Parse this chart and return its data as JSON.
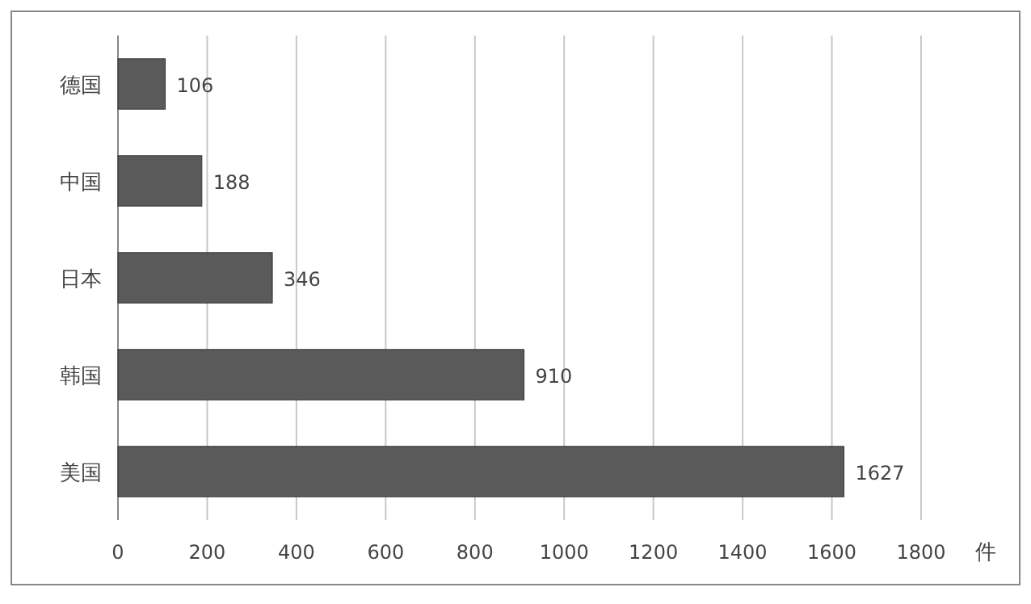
{
  "chart_data": {
    "type": "bar",
    "orientation": "horizontal",
    "categories": [
      "德国",
      "中国",
      "日本",
      "韩国",
      "美国"
    ],
    "values": [
      106,
      188,
      346,
      910,
      1627
    ],
    "color": "#5a5a5a",
    "xlim": [
      0,
      1800
    ],
    "xticks": [
      0,
      200,
      400,
      600,
      800,
      1000,
      1200,
      1400,
      1600,
      1800
    ],
    "xlabel": "件",
    "grid": "x",
    "data_labels": true
  }
}
